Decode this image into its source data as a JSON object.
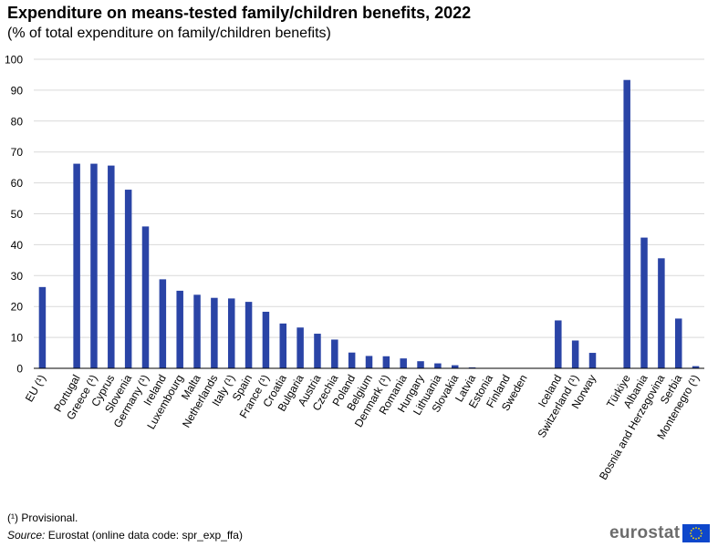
{
  "title": "Expenditure on means-tested family/children benefits, 2022",
  "subtitle": "(% of total expenditure on family/children benefits)",
  "footnote": "(¹) Provisional.",
  "source_label": "Source:",
  "source_text": " Eurostat (online data code: spr_exp_ffa)",
  "logo_text": "eurostat",
  "colors": {
    "bar": "#2a44a6",
    "grid": "#d9d9d9",
    "axis": "#000000",
    "logo_flag": "#0e47cb",
    "logo_star": "#ffdd00"
  },
  "chart_data": {
    "type": "bar",
    "title": "Expenditure on means-tested family/children benefits, 2022",
    "subtitle": "(% of total expenditure on family/children benefits)",
    "xlabel": "",
    "ylabel": "",
    "ylim": [
      0,
      100
    ],
    "yticks": [
      0,
      10,
      20,
      30,
      40,
      50,
      60,
      70,
      80,
      90,
      100
    ],
    "grid": true,
    "categories": [
      "EU (¹)",
      "",
      "Portugal",
      "Greece (¹)",
      "Cyprus",
      "Slovenia",
      "Germany (¹)",
      "Ireland",
      "Luxembourg",
      "Malta",
      "Netherlands",
      "Italy (¹)",
      "Spain",
      "France (¹)",
      "Croatia",
      "Bulgaria",
      "Austria",
      "Czechia",
      "Poland",
      "Belgium",
      "Denmark (¹)",
      "Romania",
      "Hungary",
      "Lithuania",
      "Slovakia",
      "Latvia",
      "Estonia",
      "Finland",
      "Sweden",
      "",
      "Iceland",
      "Switzerland (¹)",
      "Norway",
      "",
      "Türkiye",
      "Albania",
      "Bosnia and Herzegovina",
      "Serbia",
      "Montenegro (¹)"
    ],
    "values": [
      26.3,
      null,
      66.2,
      66.2,
      65.6,
      57.8,
      45.9,
      28.8,
      25.1,
      23.8,
      22.8,
      22.6,
      21.5,
      18.3,
      14.5,
      13.2,
      11.2,
      9.3,
      5.1,
      4.0,
      3.9,
      3.2,
      2.3,
      1.6,
      1.0,
      0.3,
      0.0,
      0.0,
      0.0,
      null,
      15.5,
      9.0,
      5.0,
      null,
      93.3,
      42.3,
      35.6,
      16.1,
      0.7
    ]
  }
}
